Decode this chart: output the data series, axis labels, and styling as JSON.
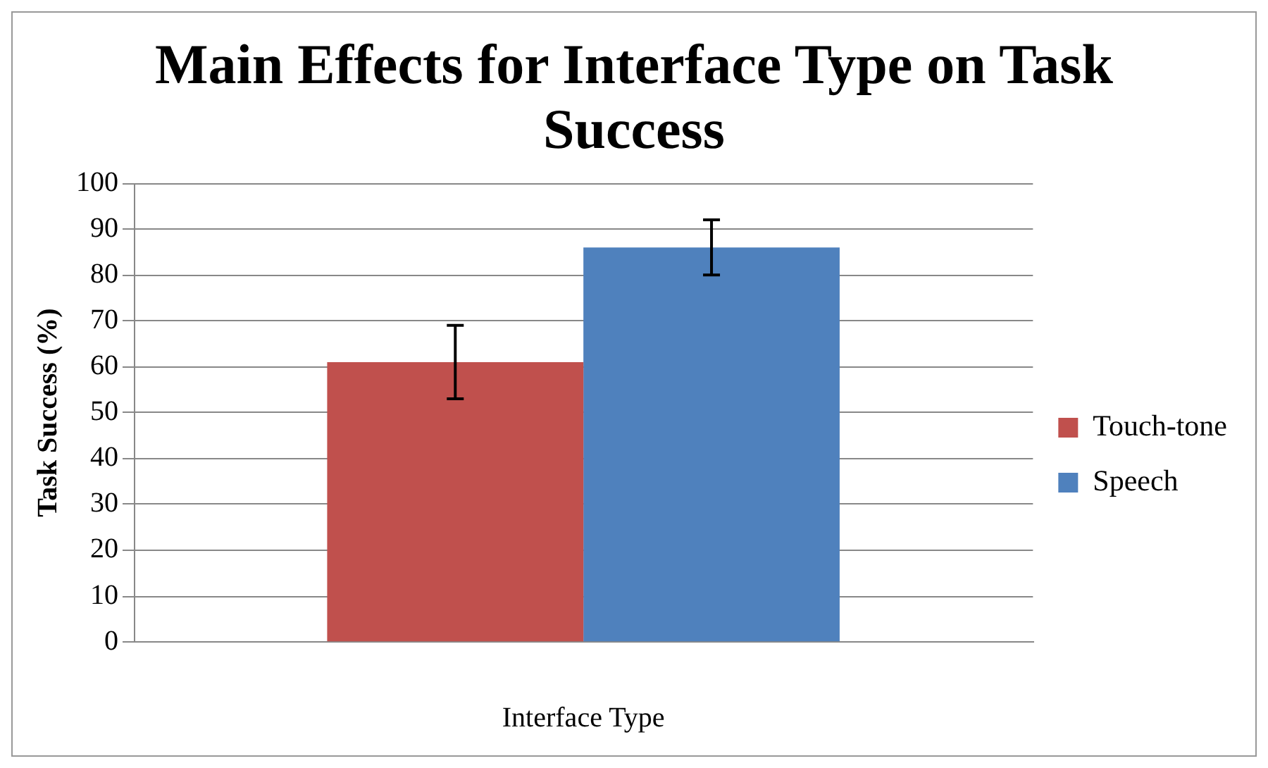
{
  "chart_data": {
    "type": "bar",
    "title": "Main Effects for Interface Type on Task Success",
    "xlabel": "Interface Type",
    "ylabel": "Task Success (%)",
    "categories": [
      null
    ],
    "series": [
      {
        "name": "Touch-tone",
        "color": "#c0504d",
        "values": [
          61
        ],
        "errors": [
          8
        ]
      },
      {
        "name": "Speech",
        "color": "#4f81bd",
        "values": [
          86
        ],
        "errors": [
          6
        ]
      }
    ],
    "ylim": [
      0,
      100
    ],
    "yticks": [
      0,
      10,
      20,
      30,
      40,
      50,
      60,
      70,
      80,
      90,
      100
    ],
    "grid": "y",
    "legend": "right"
  }
}
